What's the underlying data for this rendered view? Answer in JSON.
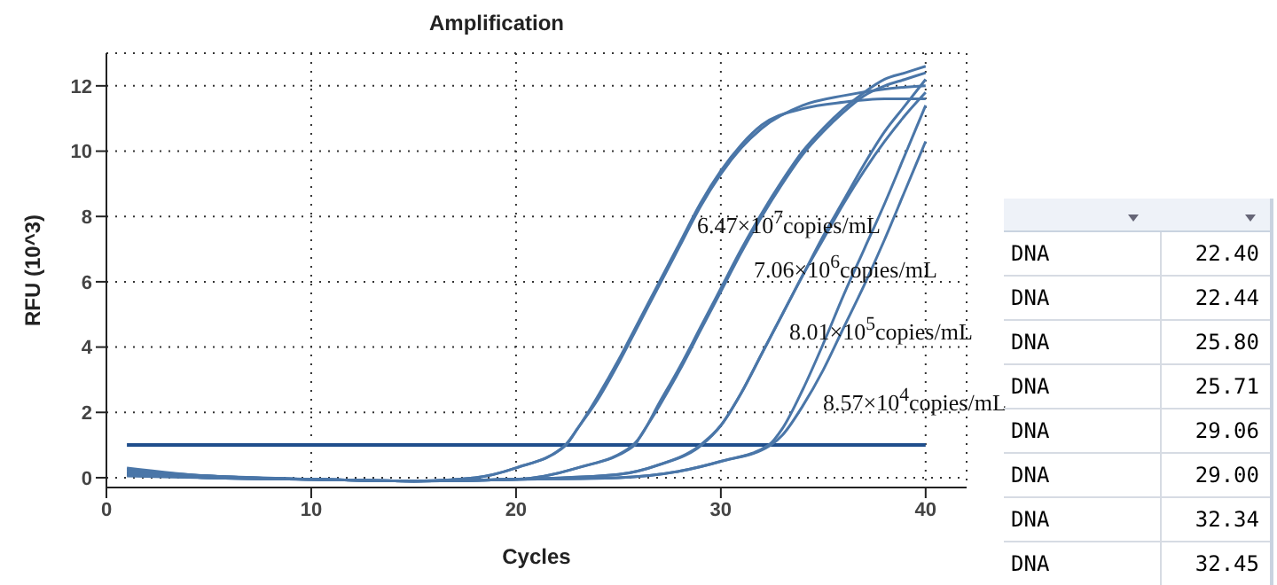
{
  "chart_data": {
    "type": "line",
    "title": "Amplification",
    "xlabel": "Cycles",
    "ylabel": "RFU (10^3)",
    "xlim": [
      0,
      42
    ],
    "xticks": [
      0,
      10,
      20,
      30,
      40
    ],
    "ylim": [
      -0.3,
      13
    ],
    "yticks": [
      0,
      2,
      4,
      6,
      8,
      10,
      12
    ],
    "grid": true,
    "legend": false,
    "marker": "none",
    "line_style": "solid",
    "ref_lines": [
      {
        "axis": "y",
        "value": 1.0,
        "color": "#1f4e8c"
      }
    ],
    "series": [
      {
        "color": "#4a76a8",
        "x": [
          1,
          5,
          10,
          15,
          18,
          20,
          22.4,
          23,
          24,
          25,
          26,
          27,
          28,
          29,
          30,
          31,
          32,
          34,
          36,
          38,
          40
        ],
        "values": [
          0.25,
          0.05,
          -0.05,
          -0.1,
          0,
          0.3,
          1,
          1.5,
          2.5,
          3.6,
          4.8,
          6.0,
          7.2,
          8.4,
          9.4,
          10.2,
          10.8,
          11.3,
          11.5,
          11.6,
          11.6
        ]
      },
      {
        "color": "#4a76a8",
        "x": [
          1,
          5,
          10,
          15,
          18,
          20,
          22.44,
          23,
          24,
          25,
          26,
          27,
          28,
          29,
          30,
          31,
          32,
          34,
          36,
          38,
          40
        ],
        "values": [
          0.1,
          0,
          -0.05,
          -0.1,
          0,
          0.3,
          1,
          1.5,
          2.4,
          3.5,
          4.7,
          5.9,
          7.1,
          8.3,
          9.3,
          10.1,
          10.7,
          11.4,
          11.7,
          11.9,
          12.0
        ]
      },
      {
        "color": "#4a76a8",
        "x": [
          1,
          5,
          10,
          15,
          20,
          23,
          25.8,
          26,
          27,
          28,
          29,
          30,
          31,
          32,
          33,
          34,
          35,
          36,
          37,
          38,
          39,
          40
        ],
        "values": [
          0.15,
          0.05,
          -0.05,
          -0.1,
          -0.05,
          0.3,
          1,
          1.2,
          2.2,
          3.3,
          4.5,
          5.7,
          6.9,
          8.0,
          9.0,
          9.9,
          10.6,
          11.2,
          11.7,
          12.0,
          12.2,
          12.4
        ]
      },
      {
        "color": "#4a76a8",
        "x": [
          1,
          5,
          10,
          15,
          20,
          23,
          25.71,
          26,
          27,
          28,
          29,
          30,
          31,
          32,
          33,
          34,
          35,
          36,
          37,
          38,
          39,
          40
        ],
        "values": [
          0.05,
          0,
          -0.05,
          -0.1,
          -0.05,
          0.3,
          1,
          1.2,
          2.3,
          3.4,
          4.6,
          5.8,
          7.0,
          8.1,
          9.1,
          10.0,
          10.7,
          11.3,
          11.8,
          12.2,
          12.4,
          12.6
        ]
      },
      {
        "color": "#4a76a8",
        "x": [
          1,
          5,
          10,
          15,
          20,
          25,
          27,
          29.06,
          30,
          31,
          32,
          33,
          34,
          35,
          36,
          37,
          38,
          39,
          40
        ],
        "values": [
          0.2,
          0.05,
          -0.05,
          -0.1,
          -0.05,
          0.1,
          0.4,
          1,
          1.6,
          2.6,
          3.8,
          5.0,
          6.2,
          7.4,
          8.5,
          9.6,
          10.6,
          11.4,
          12.2
        ]
      },
      {
        "color": "#4a76a8",
        "x": [
          1,
          5,
          10,
          15,
          20,
          25,
          27,
          29.0,
          30,
          31,
          32,
          33,
          34,
          35,
          36,
          37,
          38,
          39,
          40
        ],
        "values": [
          0.1,
          0,
          -0.05,
          -0.1,
          -0.05,
          0.1,
          0.4,
          1,
          1.6,
          2.6,
          3.8,
          5.0,
          6.2,
          7.3,
          8.4,
          9.4,
          10.3,
          11.1,
          11.8
        ]
      },
      {
        "color": "#4a76a8",
        "x": [
          1,
          5,
          10,
          15,
          20,
          25,
          28,
          30,
          32.34,
          33,
          34,
          35,
          36,
          37,
          38,
          39,
          40
        ],
        "values": [
          0.3,
          0.05,
          -0.05,
          -0.1,
          -0.05,
          0,
          0.2,
          0.5,
          1,
          1.5,
          2.7,
          4.1,
          5.6,
          7.0,
          8.4,
          9.9,
          11.4
        ]
      },
      {
        "color": "#4a76a8",
        "x": [
          1,
          5,
          10,
          15,
          20,
          25,
          28,
          30,
          32.45,
          33,
          34,
          35,
          36,
          37,
          38,
          39,
          40
        ],
        "values": [
          0.15,
          0,
          -0.05,
          -0.1,
          -0.05,
          0,
          0.2,
          0.5,
          1,
          1.3,
          2.2,
          3.3,
          4.6,
          5.9,
          7.3,
          8.8,
          10.3
        ]
      }
    ],
    "annotations": [
      "6.47×10$^{7}$copies/mL",
      "7.06×10$^{6}$copies/mL",
      "8.01×10$^{5}$copies/mL",
      "8.57×10$^{4}$copies/mL",
      "DNA",
      "22.40",
      "DNA",
      "22.44",
      "DNA",
      "25.80",
      "DNA",
      "25.71",
      "DNA",
      "29.06",
      "DNA",
      "29.00",
      "DNA",
      "32.34",
      "DNA",
      "32.45"
    ]
  }
}
